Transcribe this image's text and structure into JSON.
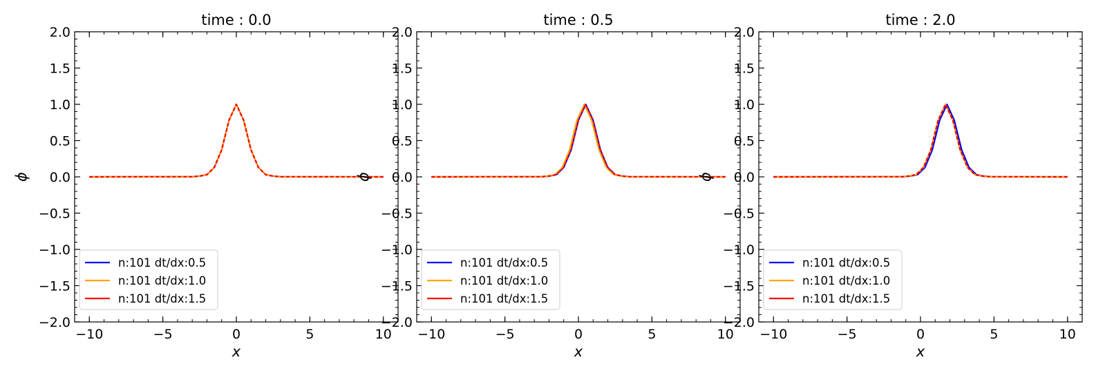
{
  "chart_data": [
    {
      "type": "line",
      "title": "time : 0.0",
      "xlabel": "x",
      "ylabel": "ϕ",
      "xlim": [
        -11,
        11
      ],
      "ylim": [
        -2.0,
        2.0
      ],
      "xticks": [
        -10,
        -5,
        0,
        5,
        10
      ],
      "yticks": [
        -2.0,
        -1.5,
        -1.0,
        -0.5,
        0.0,
        0.5,
        1.0,
        1.5,
        2.0
      ],
      "xtick_labels": [
        "−10",
        "−5",
        "0",
        "5",
        "10"
      ],
      "ytick_labels": [
        "−2.0",
        "−1.5",
        "−1.0",
        "−0.5",
        "0.0",
        "0.5",
        "1.0",
        "1.5",
        "2.0"
      ],
      "grid": false,
      "legend_position": "lower-left",
      "series": [
        {
          "name": "n:101 dt/dx:0.5",
          "color": "#0000ff",
          "x": [
            -10,
            -3,
            -2.5,
            -2,
            -1.5,
            -1,
            -0.5,
            0,
            0.5,
            1,
            1.5,
            2,
            2.5,
            3,
            10
          ],
          "y": [
            0,
            0.002,
            0.01,
            0.03,
            0.13,
            0.37,
            0.78,
            1.0,
            0.78,
            0.37,
            0.13,
            0.03,
            0.01,
            0.002,
            0
          ]
        },
        {
          "name": "n:101 dt/dx:1.0",
          "color": "#ffa500",
          "x": [
            -10,
            -3,
            -2.5,
            -2,
            -1.5,
            -1,
            -0.5,
            0,
            0.5,
            1,
            1.5,
            2,
            2.5,
            3,
            10
          ],
          "y": [
            0,
            0.002,
            0.01,
            0.03,
            0.13,
            0.37,
            0.78,
            1.0,
            0.78,
            0.37,
            0.13,
            0.03,
            0.01,
            0.002,
            0
          ]
        },
        {
          "name": "n:101 dt/dx:1.5",
          "color": "#ff0000",
          "x": [
            -10,
            -3,
            -2.5,
            -2,
            -1.5,
            -1,
            -0.5,
            0,
            0.5,
            1,
            1.5,
            2,
            2.5,
            3,
            10
          ],
          "y": [
            0,
            0.002,
            0.01,
            0.03,
            0.13,
            0.37,
            0.78,
            1.0,
            0.78,
            0.37,
            0.13,
            0.03,
            0.01,
            0.002,
            0
          ]
        }
      ]
    },
    {
      "type": "line",
      "title": "time : 0.5",
      "xlabel": "x",
      "ylabel": "ϕ",
      "xlim": [
        -11,
        11
      ],
      "ylim": [
        -2.0,
        2.0
      ],
      "xticks": [
        -10,
        -5,
        0,
        5,
        10
      ],
      "yticks": [
        -2.0,
        -1.5,
        -1.0,
        -0.5,
        0.0,
        0.5,
        1.0,
        1.5,
        2.0
      ],
      "xtick_labels": [
        "−10",
        "−5",
        "0",
        "5",
        "10"
      ],
      "ytick_labels": [
        "−2.0",
        "−1.5",
        "−1.0",
        "−0.5",
        "0.0",
        "0.5",
        "1.0",
        "1.5",
        "2.0"
      ],
      "grid": false,
      "legend_position": "lower-left",
      "series": [
        {
          "name": "n:101 dt/dx:0.5",
          "color": "#0000ff",
          "x": [
            -10,
            -2.5,
            -2,
            -1.5,
            -1,
            -0.5,
            0,
            0.5,
            1,
            1.5,
            2,
            2.5,
            3,
            3.5,
            10
          ],
          "y": [
            0,
            0.002,
            0.01,
            0.03,
            0.13,
            0.37,
            0.78,
            1.0,
            0.78,
            0.37,
            0.13,
            0.03,
            0.01,
            0.002,
            0
          ]
        },
        {
          "name": "n:101 dt/dx:1.0",
          "color": "#ffa500",
          "x": [
            -10,
            -2.6,
            -2.1,
            -1.6,
            -1.1,
            -0.6,
            -0.1,
            0.4,
            0.9,
            1.4,
            1.9,
            2.4,
            2.9,
            3.4,
            10
          ],
          "y": [
            0,
            0.002,
            0.01,
            0.03,
            0.13,
            0.37,
            0.78,
            1.0,
            0.78,
            0.37,
            0.13,
            0.03,
            0.01,
            0.002,
            0
          ]
        },
        {
          "name": "n:101 dt/dx:1.5",
          "color": "#ff0000",
          "x": [
            -10,
            -2.5,
            -2,
            -1.5,
            -1,
            -0.5,
            0,
            0.5,
            1,
            1.5,
            2,
            2.5,
            3,
            3.5,
            10
          ],
          "y": [
            0,
            0.002,
            0.01,
            0.03,
            0.13,
            0.37,
            0.78,
            1.0,
            0.78,
            0.37,
            0.13,
            0.03,
            0.01,
            0.002,
            0
          ]
        }
      ]
    },
    {
      "type": "line",
      "title": "time : 2.0",
      "xlabel": "x",
      "ylabel": "ϕ",
      "xlim": [
        -11,
        11
      ],
      "ylim": [
        -2.0,
        2.0
      ],
      "xticks": [
        -10,
        -5,
        0,
        5,
        10
      ],
      "yticks": [
        -2.0,
        -1.5,
        -1.0,
        -0.5,
        0.0,
        0.5,
        1.0,
        1.5,
        2.0
      ],
      "xtick_labels": [
        "−10",
        "−5",
        "0",
        "5",
        "10"
      ],
      "ytick_labels": [
        "−2.0",
        "−1.5",
        "−1.0",
        "−0.5",
        "0.0",
        "0.5",
        "1.0",
        "1.5",
        "2.0"
      ],
      "grid": false,
      "legend_position": "lower-left",
      "series": [
        {
          "name": "n:101 dt/dx:0.5",
          "color": "#0000ff",
          "x": [
            -10,
            -1.2,
            -0.7,
            -0.2,
            0.3,
            0.8,
            1.3,
            1.8,
            2.3,
            2.8,
            3.3,
            3.8,
            4.3,
            4.8,
            10
          ],
          "y": [
            0,
            0.002,
            0.01,
            0.03,
            0.13,
            0.37,
            0.78,
            1.0,
            0.78,
            0.37,
            0.13,
            0.03,
            0.01,
            0.002,
            0
          ]
        },
        {
          "name": "n:101 dt/dx:1.0",
          "color": "#ffa500",
          "x": [
            -10,
            -1.3,
            -0.8,
            -0.3,
            0.2,
            0.7,
            1.2,
            1.7,
            2.2,
            2.7,
            3.2,
            3.7,
            4.2,
            4.7,
            10
          ],
          "y": [
            0,
            0.002,
            0.01,
            0.03,
            0.13,
            0.37,
            0.78,
            1.0,
            0.78,
            0.37,
            0.13,
            0.03,
            0.01,
            0.002,
            0
          ]
        },
        {
          "name": "n:101 dt/dx:1.5",
          "color": "#ff0000",
          "x": [
            -10,
            -1.3,
            -0.8,
            -0.3,
            0.2,
            0.7,
            1.2,
            1.7,
            2.2,
            2.7,
            3.2,
            3.7,
            4.2,
            4.7,
            10
          ],
          "y": [
            0,
            0.002,
            0.01,
            0.03,
            0.13,
            0.37,
            0.78,
            1.0,
            0.78,
            0.37,
            0.13,
            0.03,
            0.01,
            0.002,
            0
          ]
        }
      ]
    }
  ]
}
